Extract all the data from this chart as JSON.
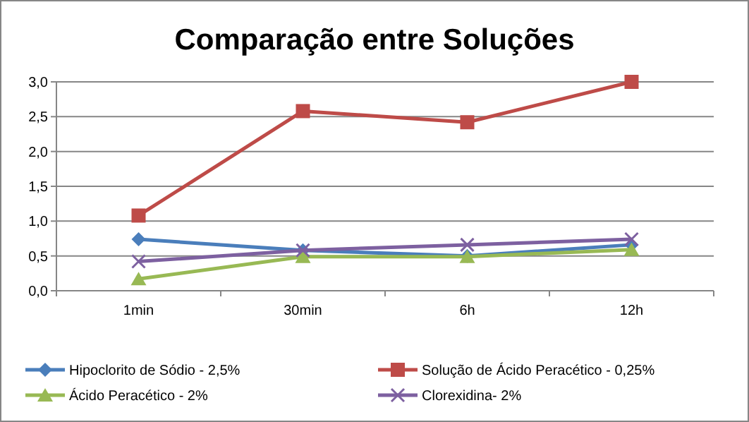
{
  "chart_data": {
    "type": "line",
    "title": "Comparação entre Soluções",
    "categories": [
      "1min",
      "30min",
      "6h",
      "12h"
    ],
    "series": [
      {
        "name": "Hipoclorito de Sódio - 2,5%",
        "color": "#4a7ebb",
        "marker": "diamond",
        "values": [
          0.74,
          0.58,
          0.5,
          0.66
        ]
      },
      {
        "name": "Solução de Ácido Peracético - 0,25%",
        "color": "#be4b48",
        "marker": "square",
        "values": [
          1.08,
          2.58,
          2.42,
          3.0
        ]
      },
      {
        "name": "Ácido Peracético - 2%",
        "color": "#98b954",
        "marker": "triangle",
        "values": [
          0.17,
          0.49,
          0.49,
          0.59
        ]
      },
      {
        "name": "Clorexidina- 2%",
        "color": "#7d60a0",
        "marker": "cross",
        "values": [
          0.42,
          0.58,
          0.66,
          0.74
        ]
      }
    ],
    "ylim": [
      0,
      3
    ],
    "yticks": [
      {
        "value": 0,
        "label": "0,0"
      },
      {
        "value": 0.5,
        "label": "0,5"
      },
      {
        "value": 1,
        "label": "1,0"
      },
      {
        "value": 1.5,
        "label": "1,5"
      },
      {
        "value": 2,
        "label": "2,0"
      },
      {
        "value": 2.5,
        "label": "2,5"
      },
      {
        "value": 3,
        "label": "3,0"
      }
    ],
    "grid": "y",
    "legend": "bottom",
    "line_style": "solid"
  }
}
